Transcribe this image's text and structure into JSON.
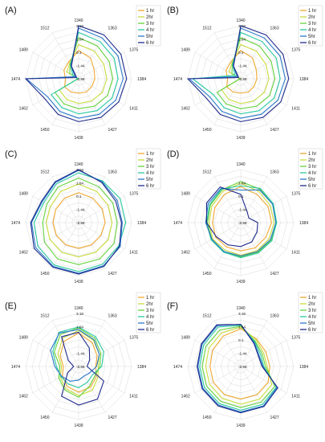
{
  "legend_labels_full": [
    "1 hr",
    "2hr",
    "3 hr",
    "4 hr",
    "5hr",
    "6 hr"
  ],
  "chart_data": [
    {
      "type": "radar",
      "panel_label": "(A)",
      "categories": [
        "1340",
        "1363",
        "1375",
        "1384",
        "1411",
        "1427",
        "1439",
        "1450",
        "1462",
        "1474",
        "1489",
        "1512"
      ],
      "ticks": [
        "3.18",
        "1.64",
        "0.1",
        "-1.44",
        "-2.98"
      ],
      "rlim": [
        -2.98,
        3.18
      ],
      "legend": [
        "1 hr",
        "2hr",
        "3 hr",
        "4 hr",
        "5hr",
        "6 hr"
      ],
      "series": [
        {
          "name": "1 hr",
          "color": "#f0a830",
          "values": [
            0.3,
            -0.2,
            -0.9,
            -1.1,
            -1.2,
            -1.2,
            -1.3,
            -1.2,
            -1.1,
            -1.44,
            -1.0,
            -0.7
          ]
        },
        {
          "name": "2hr",
          "color": "#c8dc3c",
          "values": [
            1.0,
            0.7,
            0.4,
            0.3,
            0.2,
            0.0,
            -0.1,
            -0.2,
            -0.4,
            -2.9,
            -1.4,
            -0.9
          ]
        },
        {
          "name": "3 hr",
          "color": "#64d23c",
          "values": [
            1.8,
            1.4,
            1.1,
            1.0,
            0.9,
            0.7,
            0.5,
            0.4,
            0.2,
            -2.9,
            -1.8,
            -1.0
          ]
        },
        {
          "name": "4 hr",
          "color": "#28c8a0",
          "values": [
            2.4,
            2.0,
            1.8,
            1.6,
            1.5,
            1.3,
            1.1,
            0.9,
            0.7,
            -2.9,
            -2.2,
            -1.1
          ]
        },
        {
          "name": "5hr",
          "color": "#2878c8",
          "values": [
            2.9,
            2.5,
            2.3,
            2.2,
            2.0,
            1.8,
            1.6,
            1.4,
            1.2,
            3.1,
            -2.5,
            -1.2
          ]
        },
        {
          "name": "6 hr",
          "color": "#1e2a8c",
          "values": [
            3.18,
            2.9,
            2.7,
            2.6,
            2.4,
            2.2,
            2.0,
            1.8,
            1.6,
            3.18,
            -2.7,
            -1.3
          ]
        }
      ]
    },
    {
      "type": "radar",
      "panel_label": "(B)",
      "categories": [
        "1340",
        "1363",
        "1375",
        "1384",
        "1411",
        "1427",
        "1439",
        "1450",
        "1462",
        "1474",
        "1489",
        "1512"
      ],
      "ticks": [
        "3.18",
        "1.64",
        "0.1",
        "-1.44",
        "-2.98"
      ],
      "rlim": [
        -2.98,
        3.18
      ],
      "legend": [
        "1 hr",
        "2hr",
        "3 hr",
        "4 hr",
        "5hr",
        "6 hr"
      ],
      "series": [
        {
          "name": "1 hr",
          "color": "#f0a830",
          "values": [
            0.3,
            -0.2,
            -0.9,
            -1.1,
            -1.2,
            -1.2,
            -1.3,
            -1.2,
            -1.1,
            -1.44,
            -1.0,
            -0.7
          ]
        },
        {
          "name": "2hr",
          "color": "#c8dc3c",
          "values": [
            1.0,
            0.7,
            0.4,
            0.3,
            0.2,
            0.0,
            -0.1,
            -0.2,
            -0.4,
            -2.9,
            -1.4,
            -0.9
          ]
        },
        {
          "name": "3 hr",
          "color": "#64d23c",
          "values": [
            1.8,
            1.4,
            1.1,
            1.0,
            0.9,
            0.7,
            0.5,
            0.4,
            0.2,
            -2.9,
            -1.8,
            -1.0
          ]
        },
        {
          "name": "4 hr",
          "color": "#28c8a0",
          "values": [
            2.4,
            2.0,
            1.8,
            1.6,
            1.5,
            1.3,
            1.1,
            0.9,
            0.7,
            2.6,
            -2.2,
            -1.1
          ]
        },
        {
          "name": "5hr",
          "color": "#2878c8",
          "values": [
            2.9,
            2.5,
            2.3,
            2.2,
            2.0,
            1.8,
            1.6,
            1.4,
            1.2,
            3.0,
            -2.5,
            -1.2
          ]
        },
        {
          "name": "6 hr",
          "color": "#1e2a8c",
          "values": [
            3.18,
            2.9,
            2.7,
            2.6,
            2.4,
            2.2,
            2.0,
            1.8,
            1.6,
            3.18,
            -2.7,
            -1.3
          ]
        }
      ]
    },
    {
      "type": "radar",
      "panel_label": "(C)",
      "categories": [
        "1340",
        "1363",
        "1375",
        "1384",
        "1411",
        "1427",
        "1439",
        "1450",
        "1462",
        "1474",
        "1489",
        "1512"
      ],
      "ticks": [
        "3.18",
        "1.64",
        "0.1",
        "-1.44",
        "-2.98"
      ],
      "rlim": [
        -2.98,
        3.18
      ],
      "legend": [
        "1 hr",
        "2hr",
        "3 hr",
        "4 hr",
        "5hr",
        "6 hr"
      ],
      "series": [
        {
          "name": "1 hr",
          "color": "#f0a830",
          "values": [
            0.5,
            0.3,
            0.2,
            0.1,
            0.0,
            0.0,
            0.0,
            0.0,
            0.0,
            0.0,
            0.1,
            0.3
          ]
        },
        {
          "name": "2hr",
          "color": "#c8dc3c",
          "values": [
            1.5,
            1.2,
            1.0,
            0.9,
            1.0,
            1.0,
            1.0,
            1.0,
            0.9,
            0.8,
            0.8,
            1.2
          ]
        },
        {
          "name": "3 hr",
          "color": "#64d23c",
          "values": [
            2.2,
            1.8,
            1.6,
            1.5,
            1.8,
            1.9,
            1.9,
            1.9,
            1.6,
            1.2,
            1.3,
            1.8
          ]
        },
        {
          "name": "4 hr",
          "color": "#28c8a0",
          "values": [
            2.8,
            2.6,
            2.6,
            2.5,
            2.4,
            2.6,
            2.7,
            2.7,
            2.5,
            2.2,
            1.7,
            2.2
          ]
        },
        {
          "name": "5hr",
          "color": "#2878c8",
          "values": [
            3.1,
            2.5,
            2.2,
            2.1,
            2.6,
            2.8,
            2.9,
            2.9,
            2.8,
            2.5,
            1.9,
            2.4
          ]
        },
        {
          "name": "6 hr",
          "color": "#1e2a8c",
          "values": [
            3.18,
            2.4,
            2.0,
            2.0,
            2.5,
            2.9,
            3.0,
            3.0,
            3.0,
            2.6,
            2.0,
            2.5
          ]
        }
      ]
    },
    {
      "type": "radar",
      "panel_label": "(D)",
      "categories": [
        "1340",
        "1363",
        "1375",
        "1384",
        "1411",
        "1427",
        "1439",
        "1450",
        "1462",
        "1474",
        "1489",
        "1512"
      ],
      "ticks": [
        "1.64",
        "0.1",
        "-1.44",
        "-2.98"
      ],
      "rlim": [
        -2.98,
        3.18
      ],
      "legend": [
        "1 hr",
        "2hr",
        "3 hr",
        "4 hr",
        "5hr",
        "6 hr"
      ],
      "series": [
        {
          "name": "1 hr",
          "color": "#f0a830",
          "values": [
            1.2,
            0.8,
            0.7,
            0.6,
            0.4,
            0.4,
            0.3,
            0.3,
            0.4,
            0.3,
            0.5,
            0.8
          ]
        },
        {
          "name": "2hr",
          "color": "#c8dc3c",
          "values": [
            1.6,
            1.2,
            1.0,
            0.9,
            0.8,
            0.8,
            0.8,
            0.7,
            0.8,
            0.7,
            0.9,
            1.2
          ]
        },
        {
          "name": "3 hr",
          "color": "#64d23c",
          "values": [
            1.8,
            1.5,
            1.3,
            1.1,
            1.1,
            1.0,
            1.0,
            0.9,
            0.9,
            0.9,
            1.1,
            1.4
          ]
        },
        {
          "name": "4 hr",
          "color": "#28c8a0",
          "values": [
            1.3,
            1.6,
            1.4,
            1.2,
            1.2,
            1.1,
            1.1,
            1.0,
            1.0,
            1.0,
            1.2,
            1.5
          ]
        },
        {
          "name": "5hr",
          "color": "#2878c8",
          "values": [
            0.8,
            1.4,
            1.3,
            1.1,
            1.0,
            0.9,
            0.9,
            0.9,
            0.9,
            1.1,
            1.4,
            1.6
          ]
        },
        {
          "name": "6 hr",
          "color": "#1e2a8c",
          "values": [
            0.3,
            -1.5,
            -1.9,
            -1.0,
            -0.8,
            -0.4,
            -0.2,
            0.0,
            0.3,
            1.0,
            1.6,
            1.8
          ]
        }
      ]
    },
    {
      "type": "radar",
      "panel_label": "(E)",
      "categories": [
        "1340",
        "1363",
        "1375",
        "1384",
        "1411",
        "1427",
        "1439",
        "1450",
        "1462",
        "1474",
        "1489",
        "1512"
      ],
      "ticks": [
        "3.18",
        "1.64",
        "-1.44",
        "-2.98"
      ],
      "rlim": [
        -2.98,
        3.18
      ],
      "legend": [
        "1 hr",
        "2hr",
        "3 hr",
        "4 hr",
        "5hr",
        "6 hr"
      ],
      "series": [
        {
          "name": "1 hr",
          "color": "#f0a830",
          "values": [
            0.9,
            0.2,
            -0.5,
            -1.0,
            -0.6,
            -0.2,
            0.0,
            -0.3,
            -0.8,
            -1.2,
            -0.5,
            0.4
          ]
        },
        {
          "name": "2hr",
          "color": "#c8dc3c",
          "values": [
            1.2,
            0.5,
            -0.2,
            -0.7,
            -0.4,
            0.2,
            0.4,
            0.0,
            -0.5,
            -1.0,
            -0.2,
            0.8
          ]
        },
        {
          "name": "3 hr",
          "color": "#64d23c",
          "values": [
            1.5,
            0.8,
            0.0,
            -0.5,
            -0.8,
            -0.4,
            0.6,
            0.2,
            -0.3,
            -0.8,
            0.3,
            1.3
          ]
        },
        {
          "name": "4 hr",
          "color": "#28c8a0",
          "values": [
            1.6,
            1.0,
            0.4,
            -0.3,
            -1.1,
            -0.9,
            -0.5,
            -0.6,
            -0.6,
            -0.4,
            0.5,
            1.6
          ]
        },
        {
          "name": "5hr",
          "color": "#2878c8",
          "values": [
            1.3,
            0.6,
            -0.2,
            -0.9,
            -1.5,
            -1.7,
            -1.4,
            -1.0,
            -0.7,
            -0.2,
            0.8,
            1.5
          ]
        },
        {
          "name": "6 hr",
          "color": "#1e2a8c",
          "values": [
            1.0,
            -0.5,
            -1.5,
            -2.0,
            0.4,
            1.4,
            1.5,
            1.0,
            -1.5,
            -2.4,
            -1.6,
            1.0
          ]
        }
      ]
    },
    {
      "type": "radar",
      "panel_label": "(F)",
      "categories": [
        "1340",
        "1363",
        "1375",
        "1384",
        "1411",
        "1427",
        "1439",
        "1450",
        "1462",
        "1474",
        "1489",
        "1512"
      ],
      "ticks": [
        "3.18",
        "1.64",
        "0.1",
        "-1.44",
        "-2.98"
      ],
      "rlim": [
        -2.98,
        3.18
      ],
      "legend": [
        "1 hr",
        "2hr",
        "3 hr",
        "4 hr",
        "5hr",
        "6 hr"
      ],
      "series": [
        {
          "name": "1 hr",
          "color": "#f0a830",
          "values": [
            1.4,
            0.7,
            0.4,
            0.4,
            0.7,
            0.8,
            0.8,
            0.8,
            0.7,
            0.6,
            0.8,
            1.1
          ]
        },
        {
          "name": "2hr",
          "color": "#c8dc3c",
          "values": [
            1.6,
            0.6,
            0.1,
            0.1,
            1.2,
            1.4,
            1.4,
            1.3,
            1.2,
            1.1,
            1.3,
            1.5
          ]
        },
        {
          "name": "3 hr",
          "color": "#64d23c",
          "values": [
            1.7,
            0.4,
            -0.1,
            -0.1,
            1.6,
            1.8,
            1.8,
            1.7,
            1.6,
            1.5,
            1.7,
            1.9
          ]
        },
        {
          "name": "4 hr",
          "color": "#28c8a0",
          "values": [
            1.8,
            0.3,
            -0.3,
            -0.3,
            1.8,
            2.1,
            2.1,
            2.0,
            1.9,
            1.8,
            2.0,
            2.3
          ]
        },
        {
          "name": "5hr",
          "color": "#2878c8",
          "values": [
            1.9,
            0.2,
            -0.5,
            -0.4,
            1.9,
            2.3,
            2.3,
            2.2,
            2.1,
            2.0,
            2.2,
            2.5
          ]
        },
        {
          "name": "6 hr",
          "color": "#1e2a8c",
          "values": [
            1.9,
            0.1,
            -0.6,
            -0.5,
            2.0,
            2.4,
            2.4,
            2.3,
            2.2,
            2.1,
            2.3,
            2.6
          ]
        }
      ]
    }
  ]
}
